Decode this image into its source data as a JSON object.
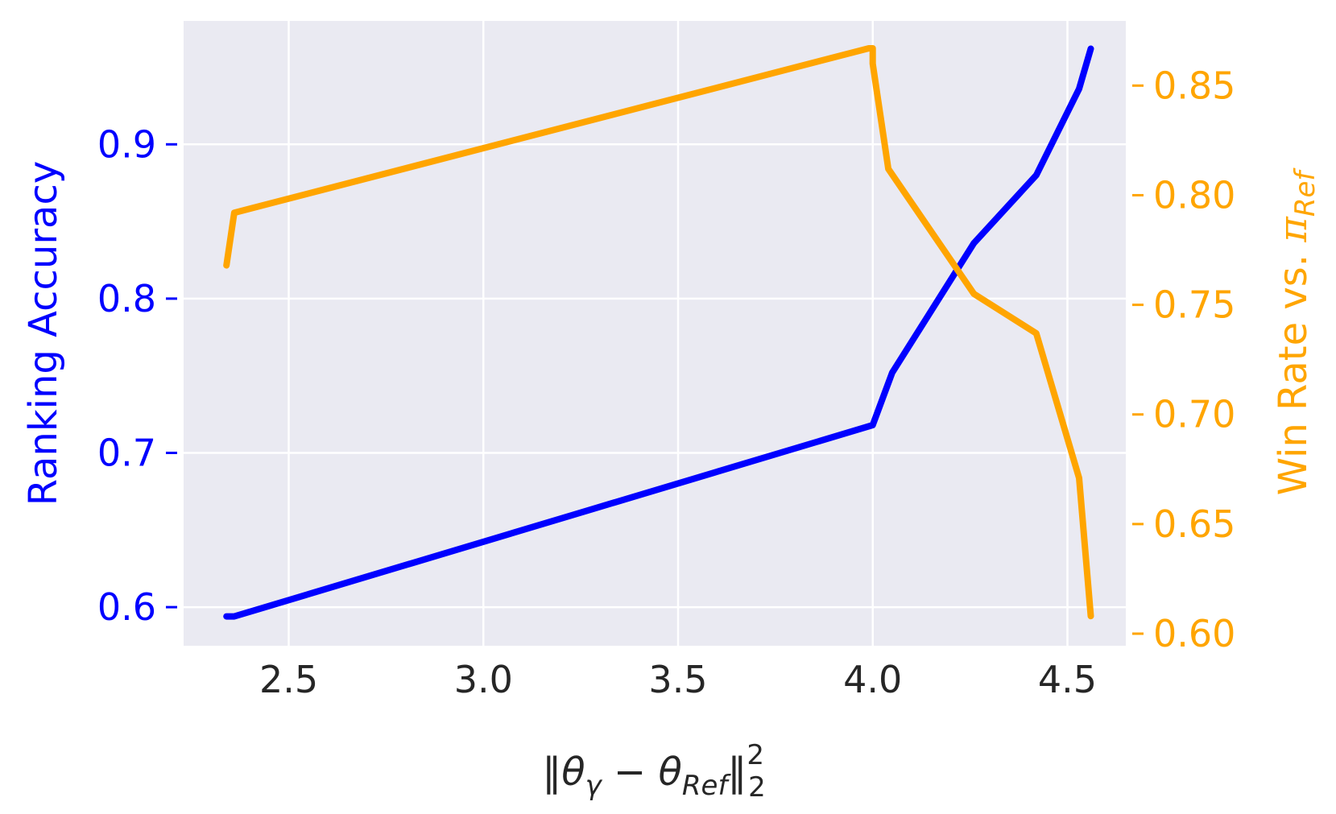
{
  "chart_data": {
    "type": "line",
    "x_axis": {
      "label_parts": [
        "‖θ",
        "γ",
        " − θ",
        "Ref",
        "‖",
        "2",
        "2"
      ],
      "range": [
        2.23,
        4.65
      ],
      "ticks": [
        2.5,
        3.0,
        3.5,
        4.0,
        4.5
      ],
      "tick_labels": [
        "2.5",
        "3.0",
        "3.5",
        "4.0",
        "4.5"
      ],
      "grid": true
    },
    "y_left": {
      "label": "Ranking Accuracy",
      "color": "#0000ff",
      "range": [
        0.575,
        0.98
      ],
      "ticks": [
        0.6,
        0.7,
        0.8,
        0.9
      ],
      "tick_labels": [
        "0.6",
        "0.7",
        "0.8",
        "0.9"
      ],
      "grid": true
    },
    "y_right": {
      "label_parts": [
        "Win Rate vs. ",
        "π",
        "Ref"
      ],
      "color": "#ffa500",
      "range": [
        0.5945,
        0.8795
      ],
      "ticks": [
        0.6,
        0.65,
        0.7,
        0.75,
        0.8,
        0.85
      ],
      "tick_labels": [
        "0.60",
        "0.65",
        "0.70",
        "0.75",
        "0.80",
        "0.85"
      ]
    },
    "series": [
      {
        "axis": "left",
        "color": "#0000ff",
        "x": [
          2.34,
          2.36,
          4.0,
          4.05,
          4.26,
          4.42,
          4.53,
          4.56
        ],
        "y": [
          0.594,
          0.594,
          0.718,
          0.752,
          0.836,
          0.88,
          0.936,
          0.962
        ]
      },
      {
        "axis": "right",
        "color": "#ffa500",
        "x": [
          2.34,
          2.36,
          3.99,
          4.0,
          4.0,
          4.04,
          4.26,
          4.42,
          4.53,
          4.56
        ],
        "y": [
          0.768,
          0.792,
          0.867,
          0.867,
          0.86,
          0.812,
          0.755,
          0.737,
          0.671,
          0.608
        ]
      }
    ],
    "background": "#eaeaf2",
    "grid_color": "#ffffff"
  }
}
